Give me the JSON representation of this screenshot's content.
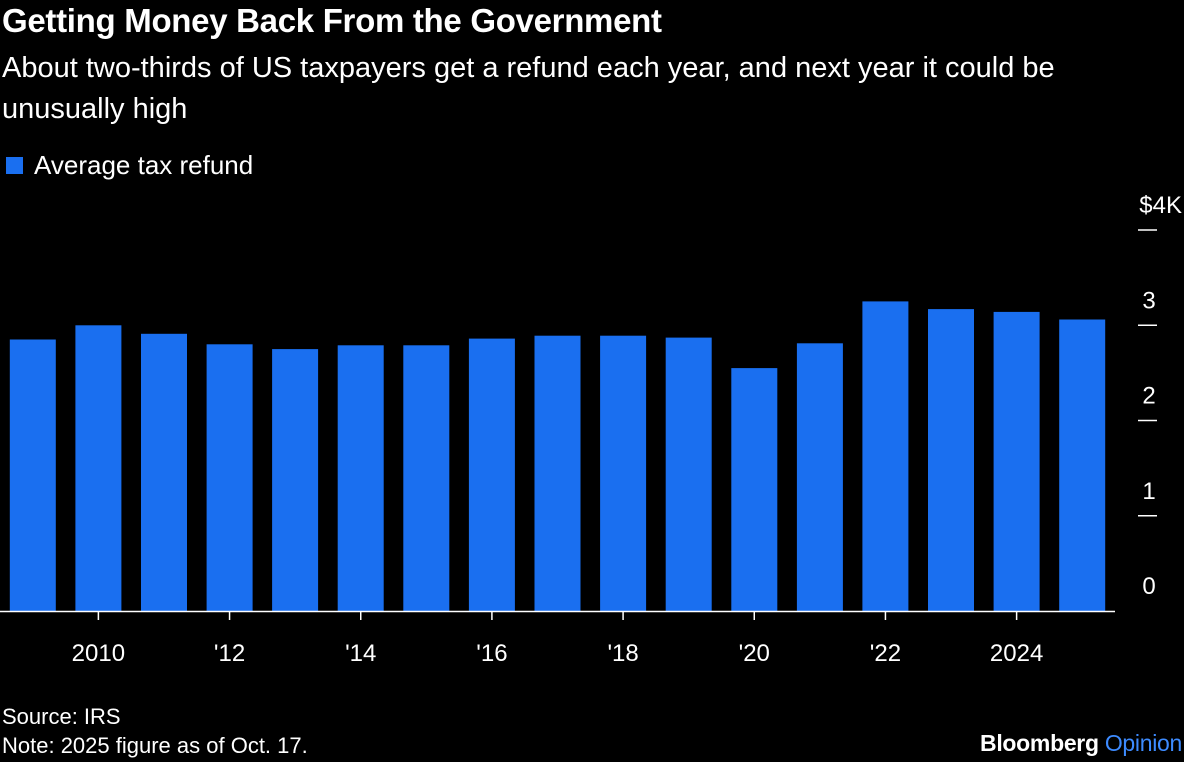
{
  "colors": {
    "background": "#000000",
    "bar": "#1a6ff0",
    "text": "#ffffff",
    "brand_accent": "#3d8bff"
  },
  "chart_data": {
    "type": "bar",
    "title": "Getting Money Back From the Government",
    "subtitle": "About two-thirds of US taxpayers get a refund each year, and next year it could be unusually high",
    "legend": [
      "Average tax refund"
    ],
    "legend_position": "top-left",
    "categories": [
      "2009",
      "2010",
      "2011",
      "2012",
      "2013",
      "2014",
      "2015",
      "2016",
      "2017",
      "2018",
      "2019",
      "2020",
      "2021",
      "2022",
      "2023",
      "2024",
      "2025"
    ],
    "series": [
      {
        "name": "Average tax refund",
        "values": [
          2.85,
          3.0,
          2.91,
          2.8,
          2.75,
          2.79,
          2.79,
          2.86,
          2.89,
          2.89,
          2.87,
          2.55,
          2.81,
          3.25,
          3.17,
          3.14,
          3.06
        ]
      }
    ],
    "x_tick_labels": [
      {
        "category": "2010",
        "label": "2010"
      },
      {
        "category": "2012",
        "label": "'12"
      },
      {
        "category": "2014",
        "label": "'14"
      },
      {
        "category": "2016",
        "label": "'16"
      },
      {
        "category": "2018",
        "label": "'18"
      },
      {
        "category": "2020",
        "label": "'20"
      },
      {
        "category": "2022",
        "label": "'22"
      },
      {
        "category": "2024",
        "label": "2024"
      }
    ],
    "y_ticks": [
      {
        "value": 0,
        "label": "0"
      },
      {
        "value": 1,
        "label": "1"
      },
      {
        "value": 2,
        "label": "2"
      },
      {
        "value": 3,
        "label": "3"
      },
      {
        "value": 4,
        "label": "$4K"
      }
    ],
    "ylim": [
      0,
      4
    ],
    "xlabel": "",
    "ylabel": "",
    "grid": false,
    "y_axis_side": "right"
  },
  "footer": {
    "source": "Source: IRS",
    "note": "Note: 2025 figure as of Oct. 17."
  },
  "brand": {
    "name": "Bloomberg",
    "section": "Opinion"
  }
}
